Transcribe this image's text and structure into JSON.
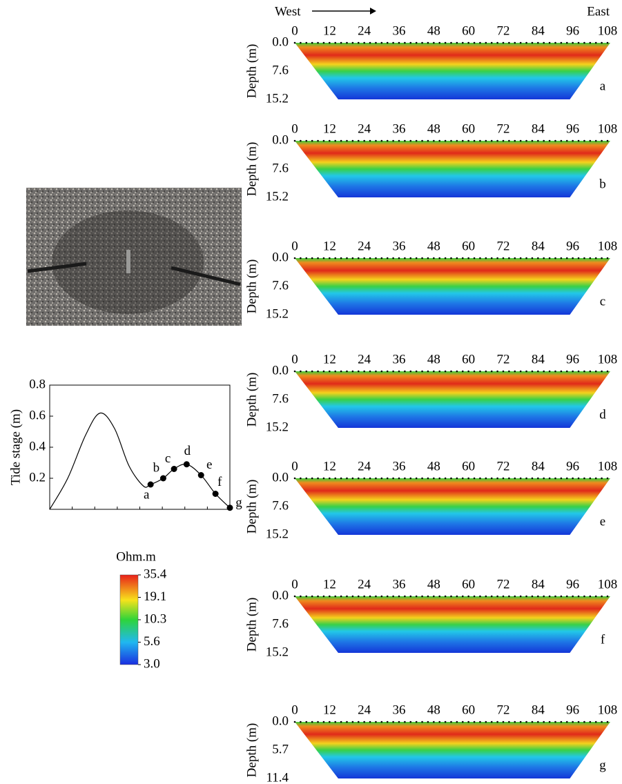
{
  "direction": {
    "west": "West",
    "east": "East"
  },
  "chart_data": {
    "type": "line",
    "ylabel": "Tide stage (m)",
    "x": [
      0,
      10,
      20,
      28,
      36,
      44,
      52,
      56,
      63,
      69,
      76,
      84,
      92,
      100
    ],
    "values": [
      0,
      0.2,
      0.48,
      0.62,
      0.52,
      0.28,
      0.15,
      0.16,
      0.2,
      0.26,
      0.29,
      0.22,
      0.1,
      0.01
    ],
    "points": {
      "x": [
        56,
        63,
        69,
        76,
        84,
        92,
        100
      ],
      "values": [
        0.16,
        0.2,
        0.26,
        0.29,
        0.22,
        0.1,
        0.01
      ],
      "labels": [
        "a",
        "b",
        "c",
        "d",
        "e",
        "f",
        "g"
      ]
    },
    "xlim": [
      0,
      100
    ],
    "ylim": [
      0,
      0.8
    ],
    "yticks": [
      0.2,
      0.4,
      0.6,
      0.8
    ],
    "color": "#000000"
  },
  "colorbar": {
    "title": "Ohm.m",
    "ticks": [
      35.4,
      19.1,
      10.3,
      5.6,
      {
        "value": 3,
        "label": "3.0"
      }
    ]
  },
  "sections": [
    {
      "label": "a",
      "ylabel": "Depth (m)",
      "xlim": [
        0,
        108
      ],
      "xticks": [
        0,
        12,
        24,
        36,
        48,
        60,
        72,
        84,
        96,
        108
      ],
      "ylim": [
        0,
        15.2
      ],
      "yticks": [
        {
          "value": 0,
          "label": "0.0"
        },
        7.6,
        15.2
      ]
    },
    {
      "label": "b",
      "ylabel": "Depth (m)",
      "xlim": [
        0,
        108
      ],
      "xticks": [
        0,
        12,
        24,
        36,
        48,
        60,
        72,
        84,
        96,
        108
      ],
      "ylim": [
        0,
        15.2
      ],
      "yticks": [
        {
          "value": 0,
          "label": "0.0"
        },
        7.6,
        15.2
      ]
    },
    {
      "label": "c",
      "ylabel": "Depth (m)",
      "xlim": [
        0,
        108
      ],
      "xticks": [
        0,
        12,
        24,
        36,
        48,
        60,
        72,
        84,
        96,
        108
      ],
      "ylim": [
        0,
        15.2
      ],
      "yticks": [
        {
          "value": 0,
          "label": "0.0"
        },
        7.6,
        15.2
      ]
    },
    {
      "label": "d",
      "ylabel": "Depth (m)",
      "xlim": [
        0,
        108
      ],
      "xticks": [
        0,
        12,
        24,
        36,
        48,
        60,
        72,
        84,
        96,
        108
      ],
      "ylim": [
        0,
        15.2
      ],
      "yticks": [
        {
          "value": 0,
          "label": "0.0"
        },
        7.6,
        15.2
      ]
    },
    {
      "label": "e",
      "ylabel": "Depth (m)",
      "xlim": [
        0,
        108
      ],
      "xticks": [
        0,
        12,
        24,
        36,
        48,
        60,
        72,
        84,
        96,
        108
      ],
      "ylim": [
        0,
        15.2
      ],
      "yticks": [
        {
          "value": 0,
          "label": "0.0"
        },
        7.6,
        15.2
      ]
    },
    {
      "label": "f",
      "ylabel": "Depth (m)",
      "xlim": [
        0,
        108
      ],
      "xticks": [
        0,
        12,
        24,
        36,
        48,
        60,
        72,
        84,
        96,
        108
      ],
      "ylim": [
        0,
        15.2
      ],
      "yticks": [
        {
          "value": 0,
          "label": "0.0"
        },
        7.6,
        15.2
      ]
    },
    {
      "label": "g",
      "ylabel": "Depth (m)",
      "xlim": [
        0,
        108
      ],
      "xticks": [
        0,
        12,
        24,
        36,
        48,
        60,
        72,
        84,
        96,
        108
      ],
      "ylim": [
        0,
        11.4
      ],
      "yticks": [
        {
          "value": 0,
          "label": "0.0"
        },
        5.7,
        11.4
      ]
    }
  ]
}
